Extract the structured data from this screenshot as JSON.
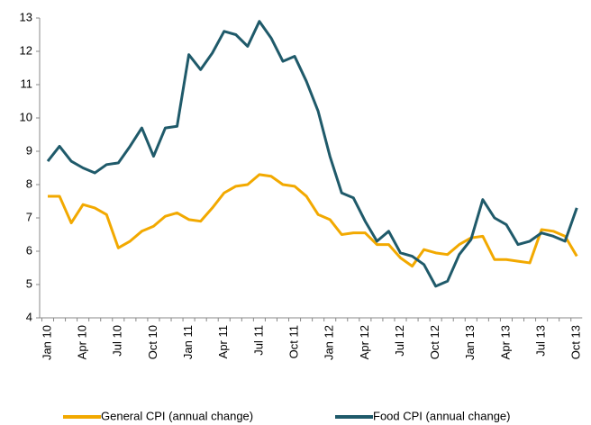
{
  "chart_data": {
    "type": "line",
    "categories": [
      "Jan 10",
      null,
      null,
      "Apr 10",
      null,
      null,
      "Jul 10",
      null,
      null,
      "Oct 10",
      null,
      null,
      "Jan 11",
      null,
      null,
      "Apr 11",
      null,
      null,
      "Jul 11",
      null,
      null,
      "Oct 11",
      null,
      null,
      "Jan 12",
      null,
      null,
      "Apr 12",
      null,
      null,
      "Jul 12",
      null,
      null,
      "Oct 12",
      null,
      null,
      "Jan 13",
      null,
      null,
      "Apr 13",
      null,
      null,
      "Jul 13",
      null,
      null,
      "Oct 13"
    ],
    "series": [
      {
        "name": "General CPI (annual change)",
        "color": "#f2a900",
        "values": [
          7.65,
          7.65,
          6.85,
          7.4,
          7.3,
          7.1,
          6.1,
          6.3,
          6.6,
          6.75,
          7.05,
          7.15,
          6.95,
          6.9,
          7.3,
          7.75,
          7.95,
          8.0,
          8.3,
          8.25,
          8.0,
          7.95,
          7.65,
          7.1,
          6.95,
          6.5,
          6.55,
          6.55,
          6.2,
          6.2,
          5.8,
          5.55,
          6.05,
          5.95,
          5.9,
          6.2,
          6.4,
          6.45,
          5.75,
          5.75,
          5.7,
          5.65,
          6.65,
          6.6,
          6.45,
          5.85
        ]
      },
      {
        "name": "Food CPI (annual change)",
        "color": "#1f5a6a",
        "values": [
          8.7,
          9.15,
          8.7,
          8.5,
          8.35,
          8.6,
          8.65,
          9.15,
          9.7,
          8.85,
          9.7,
          9.75,
          11.9,
          11.45,
          11.95,
          12.6,
          12.5,
          12.15,
          12.9,
          12.4,
          11.7,
          11.85,
          11.1,
          10.2,
          8.85,
          7.75,
          7.6,
          6.9,
          6.3,
          6.6,
          5.95,
          5.85,
          5.6,
          4.95,
          5.1,
          5.9,
          6.35,
          7.55,
          7.0,
          6.8,
          6.2,
          6.3,
          6.55,
          6.45,
          6.3,
          7.3
        ]
      }
    ],
    "ylim": [
      4,
      13
    ],
    "yticks": [
      4,
      5,
      6,
      7,
      8,
      9,
      10,
      11,
      12,
      13
    ],
    "grid": false,
    "legend": "bottom"
  }
}
